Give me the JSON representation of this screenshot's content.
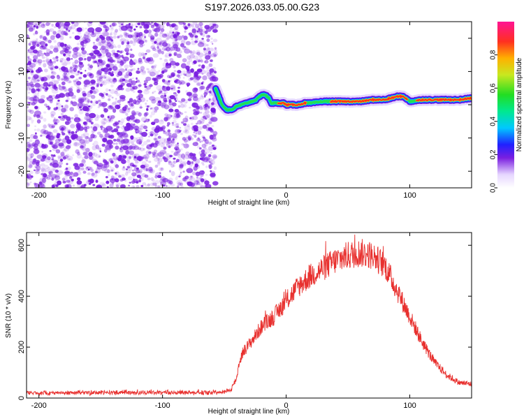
{
  "figure_title": "S197.2026.033.05.00.G23",
  "colors": {
    "snr_line": "#e8302e",
    "ducting_scatter": "#7a1fe0",
    "background": "#ffffff",
    "axes": "#000000"
  },
  "chart_data": [
    {
      "type": "heatmap",
      "title": "",
      "xlabel": "Height of straight line (km)",
      "ylabel": "Frequency (Hz)",
      "xlim": [
        -210,
        150
      ],
      "ylim": [
        -25,
        25
      ],
      "xticks": [
        -200,
        -100,
        0,
        100
      ],
      "xtick_labels": [
        "-200",
        "-100",
        "0",
        "100"
      ],
      "yticks": [
        -20,
        -10,
        0,
        10,
        20
      ],
      "ytick_labels": [
        "-20",
        "-10",
        "0",
        "10",
        "20"
      ],
      "noise_region": {
        "x_from": -210,
        "x_to": -57,
        "description_value": "scattered low coherence"
      },
      "ridge": {
        "x": [
          -57,
          -55,
          -52,
          -48,
          -44,
          -40,
          -36,
          -32,
          -28,
          -24,
          -20,
          -17,
          -14,
          -12,
          -10,
          -6,
          -2,
          0,
          5,
          10,
          15,
          20,
          30,
          40,
          50,
          60,
          70,
          80,
          85,
          90,
          95,
          100,
          110,
          120,
          130,
          140,
          150
        ],
        "frequency_hz": [
          5,
          3,
          0,
          -1.5,
          -1.5,
          -0.5,
          0,
          0.5,
          1,
          1.5,
          3,
          3,
          2,
          0.5,
          0.5,
          0.5,
          0.5,
          0,
          0,
          0,
          0.5,
          0.5,
          1,
          1,
          1,
          1,
          1.5,
          1.5,
          2,
          2.5,
          2.5,
          1,
          1.5,
          1.5,
          1.5,
          1.5,
          2
        ],
        "amplitude": [
          0.35,
          0.3,
          0.3,
          0.35,
          0.45,
          0.55,
          0.6,
          0.55,
          0.5,
          0.55,
          0.65,
          0.6,
          0.55,
          0.65,
          0.7,
          0.8,
          0.85,
          0.9,
          0.95,
          0.95,
          0.8,
          0.7,
          0.75,
          0.8,
          0.95,
          0.95,
          0.8,
          0.9,
          0.85,
          0.95,
          0.95,
          0.7,
          0.85,
          0.9,
          0.9,
          0.9,
          0.9
        ]
      },
      "colorbar": {
        "label": "Normalized spectral amplitude",
        "range": [
          0,
          1
        ],
        "ticks": [
          0.0,
          0.2,
          0.4,
          0.6,
          0.8
        ],
        "tick_labels": [
          "0.0",
          "0.2",
          "0.4",
          "0.6",
          "0.8"
        ]
      }
    },
    {
      "type": "line",
      "title": "",
      "xlabel": "Height of straight line (km)",
      "ylabel": "SNR (10 * v/v)",
      "xlim": [
        -210,
        150
      ],
      "ylim": [
        0,
        650
      ],
      "xticks": [
        -200,
        -100,
        0,
        100
      ],
      "xtick_labels": [
        "-200",
        "-100",
        "0",
        "100"
      ],
      "yticks": [
        0,
        200,
        400,
        600
      ],
      "ytick_labels": [
        "0",
        "200",
        "400",
        "600"
      ],
      "series": [
        {
          "name": "SNR",
          "x": [
            -210,
            -200,
            -150,
            -100,
            -60,
            -45,
            -40,
            -38,
            -35,
            -30,
            -20,
            -10,
            0,
            10,
            20,
            30,
            40,
            50,
            60,
            70,
            80,
            90,
            100,
            110,
            120,
            130,
            140,
            150
          ],
          "values": [
            20,
            20,
            22,
            22,
            22,
            30,
            80,
            140,
            180,
            210,
            280,
            320,
            380,
            440,
            480,
            510,
            540,
            560,
            570,
            560,
            520,
            420,
            320,
            220,
            140,
            90,
            60,
            55
          ]
        }
      ]
    }
  ]
}
